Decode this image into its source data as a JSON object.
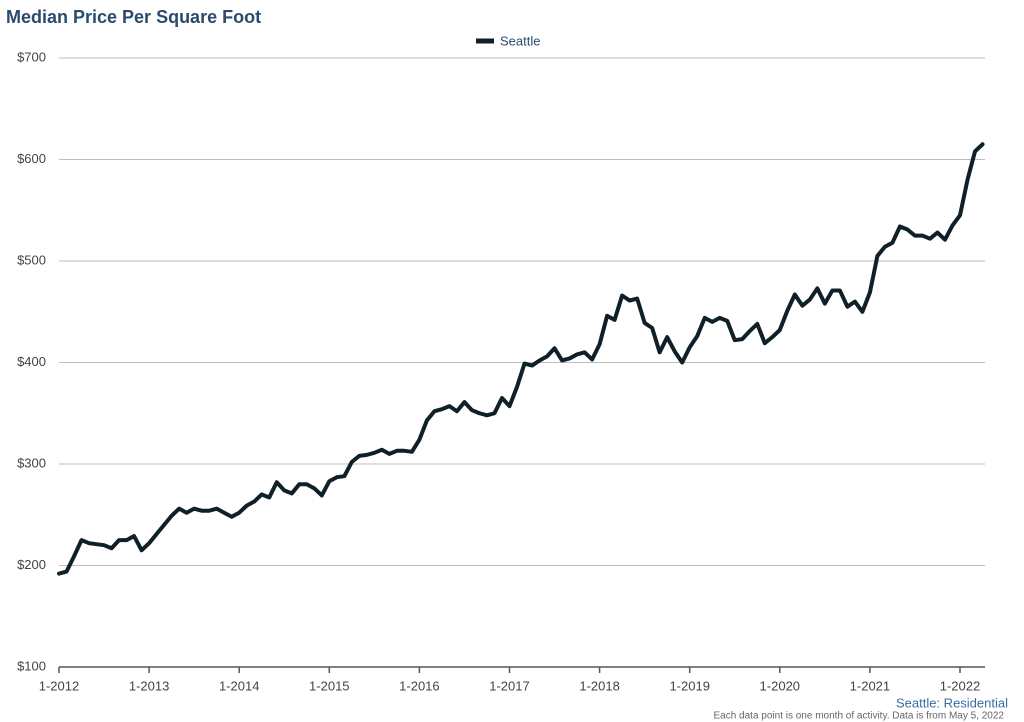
{
  "chart_data": {
    "type": "line",
    "title": "Median Price Per Square Foot",
    "annotation": "Seattle: Residential",
    "note": "Each data point is one month of activity. Data is from May 5, 2022",
    "categories": [
      "1-2012",
      null,
      null,
      null,
      null,
      null,
      null,
      null,
      null,
      null,
      null,
      null,
      "1-2013",
      null,
      null,
      null,
      null,
      null,
      null,
      null,
      null,
      null,
      null,
      null,
      "1-2014",
      null,
      null,
      null,
      null,
      null,
      null,
      null,
      null,
      null,
      null,
      null,
      "1-2015",
      null,
      null,
      null,
      null,
      null,
      null,
      null,
      null,
      null,
      null,
      null,
      "1-2016",
      null,
      null,
      null,
      null,
      null,
      null,
      null,
      null,
      null,
      null,
      null,
      "1-2017",
      null,
      null,
      null,
      null,
      null,
      null,
      null,
      null,
      null,
      null,
      null,
      "1-2018",
      null,
      null,
      null,
      null,
      null,
      null,
      null,
      null,
      null,
      null,
      null,
      "1-2019",
      null,
      null,
      null,
      null,
      null,
      null,
      null,
      null,
      null,
      null,
      null,
      "1-2020",
      null,
      null,
      null,
      null,
      null,
      null,
      null,
      null,
      null,
      null,
      null,
      "1-2021",
      null,
      null,
      null,
      null,
      null,
      null,
      null,
      null,
      null,
      null,
      null,
      "1-2022",
      null,
      null,
      null
    ],
    "series": [
      {
        "name": "Seattle",
        "color": "#0f2028",
        "values": [
          192,
          194,
          209,
          225,
          222,
          221,
          220,
          217,
          225,
          225,
          229,
          215,
          222,
          231,
          240,
          249,
          256,
          252,
          256,
          254,
          254,
          256,
          252,
          248,
          252,
          259,
          263,
          270,
          267,
          282,
          274,
          271,
          280,
          280,
          276,
          269,
          283,
          287,
          288,
          302,
          308,
          309,
          311,
          314,
          310,
          313,
          313,
          312,
          324,
          343,
          352,
          354,
          357,
          352,
          361,
          353,
          350,
          348,
          350,
          365,
          357,
          376,
          399,
          397,
          402,
          406,
          414,
          402,
          404,
          408,
          410,
          403,
          418,
          446,
          442,
          466,
          461,
          463,
          439,
          434,
          410,
          425,
          411,
          400,
          415,
          426,
          444,
          440,
          444,
          441,
          422,
          423,
          431,
          438,
          419,
          425,
          432,
          451,
          467,
          456,
          462,
          473,
          458,
          471,
          471,
          455,
          460,
          450,
          469,
          505,
          514,
          518,
          534,
          531,
          525,
          525,
          522,
          528,
          521,
          535,
          545,
          580,
          608,
          615
        ]
      }
    ],
    "ylim": [
      100,
      700
    ],
    "yticks": [
      {
        "value": 100,
        "label": "$100"
      },
      {
        "value": 200,
        "label": "$200"
      },
      {
        "value": 300,
        "label": "$300"
      },
      {
        "value": 400,
        "label": "$400"
      },
      {
        "value": 500,
        "label": "$500"
      },
      {
        "value": 600,
        "label": "$600"
      },
      {
        "value": 700,
        "label": "$700"
      }
    ],
    "grid": true
  }
}
